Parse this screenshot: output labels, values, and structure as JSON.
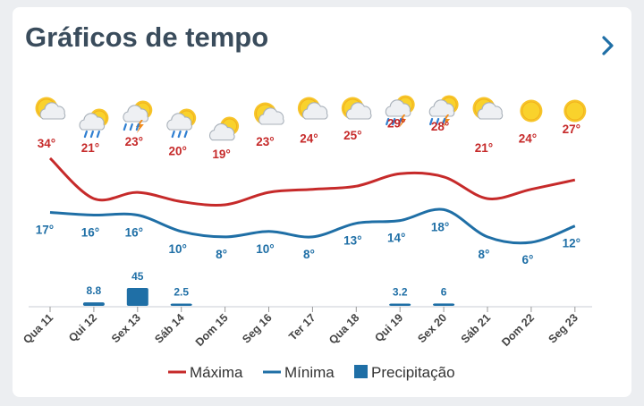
{
  "header": {
    "title": "Gráficos de tempo"
  },
  "colors": {
    "max": "#c62a2a",
    "min": "#1f6fa6",
    "precip": "#1f6fa6"
  },
  "chart_data": {
    "type": "line",
    "categories": [
      "Qua 11",
      "Qui 12",
      "Sex 13",
      "Sáb 14",
      "Dom 15",
      "Seg 16",
      "Ter 17",
      "Qua 18",
      "Qui 19",
      "Sex 20",
      "Sáb 21",
      "Dom 22",
      "Seg 23"
    ],
    "icons": [
      "partly-sunny-icon",
      "rain-cloud-sun-icon",
      "thunderstorm-sun-icon",
      "rain-cloud-sun-icon",
      "partly-cloudy-icon",
      "partly-sunny-icon",
      "partly-sunny-icon",
      "partly-sunny-icon",
      "thunderstorm-sun-icon",
      "thunderstorm-sun-icon",
      "partly-sunny-icon",
      "sun-icon",
      "sun-icon"
    ],
    "series": [
      {
        "name": "Máxima",
        "values": [
          34,
          21,
          23,
          20,
          19,
          23,
          24,
          25,
          29,
          28,
          21,
          24,
          27
        ],
        "labels": [
          "34°",
          "21°",
          "23°",
          "20°",
          "19°",
          "23°",
          "24°",
          "25°",
          "29°",
          "28°",
          "21°",
          "24°",
          "27°"
        ]
      },
      {
        "name": "Mínima",
        "values": [
          17,
          16,
          16,
          10,
          8,
          10,
          8,
          13,
          14,
          18,
          8,
          6,
          12
        ],
        "labels": [
          "17°",
          "16°",
          "16°",
          "10°",
          "8°",
          "10°",
          "8°",
          "13°",
          "14°",
          "18°",
          "8°",
          "6°",
          "12°"
        ]
      },
      {
        "name": "Precipitação",
        "values": [
          0,
          8.8,
          45,
          2.5,
          0,
          0,
          0,
          0,
          3.2,
          6,
          0,
          0,
          0
        ],
        "labels": [
          "",
          "8.8",
          "45",
          "2.5",
          "",
          "",
          "",
          "",
          "3.2",
          "6",
          "",
          "",
          ""
        ]
      }
    ],
    "legend": [
      "Máxima",
      "Mínima",
      "Precipitação"
    ]
  }
}
